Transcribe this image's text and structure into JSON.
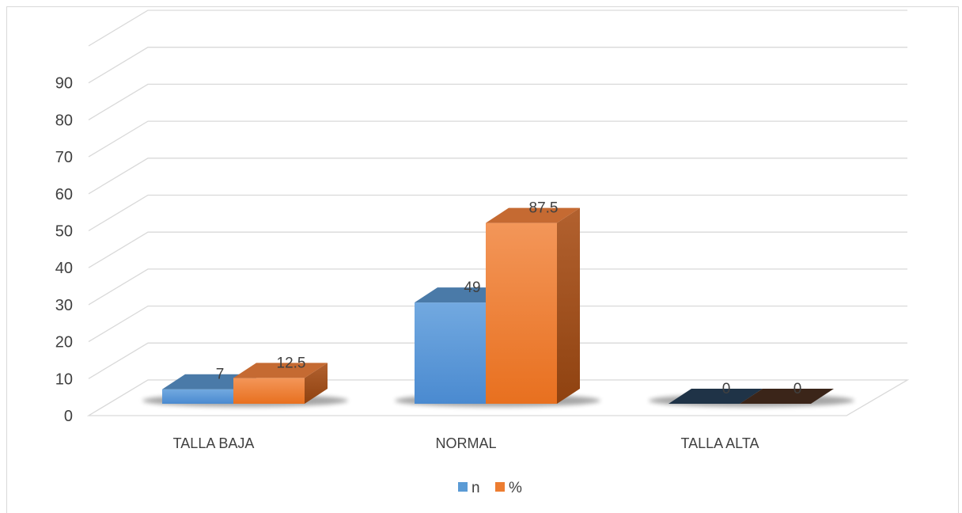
{
  "chart_data": {
    "type": "bar",
    "categories": [
      "TALLA BAJA",
      "NORMAL",
      "TALLA ALTA"
    ],
    "series": [
      {
        "name": "n",
        "values": [
          7,
          49,
          0
        ],
        "color": "#5b9bd5",
        "top_color": "#4a7aa8",
        "side_color": "#2e5f8f",
        "zero_color": "#1f3347"
      },
      {
        "name": "%",
        "values": [
          12.5,
          87.5,
          0
        ],
        "color": "#ed7d31",
        "top_color": "#c56a32",
        "side_color": "#a8521d",
        "zero_color": "#3b2519"
      }
    ],
    "data_labels": [
      [
        "7",
        "49",
        "0"
      ],
      [
        "12.5",
        "87.5",
        "0"
      ]
    ],
    "y_ticks": [
      "0",
      "10",
      "20",
      "30",
      "40",
      "50",
      "60",
      "70",
      "80",
      "90"
    ],
    "ylim": [
      0,
      100
    ],
    "three_d": true,
    "grid": true,
    "legend": "bottom"
  }
}
